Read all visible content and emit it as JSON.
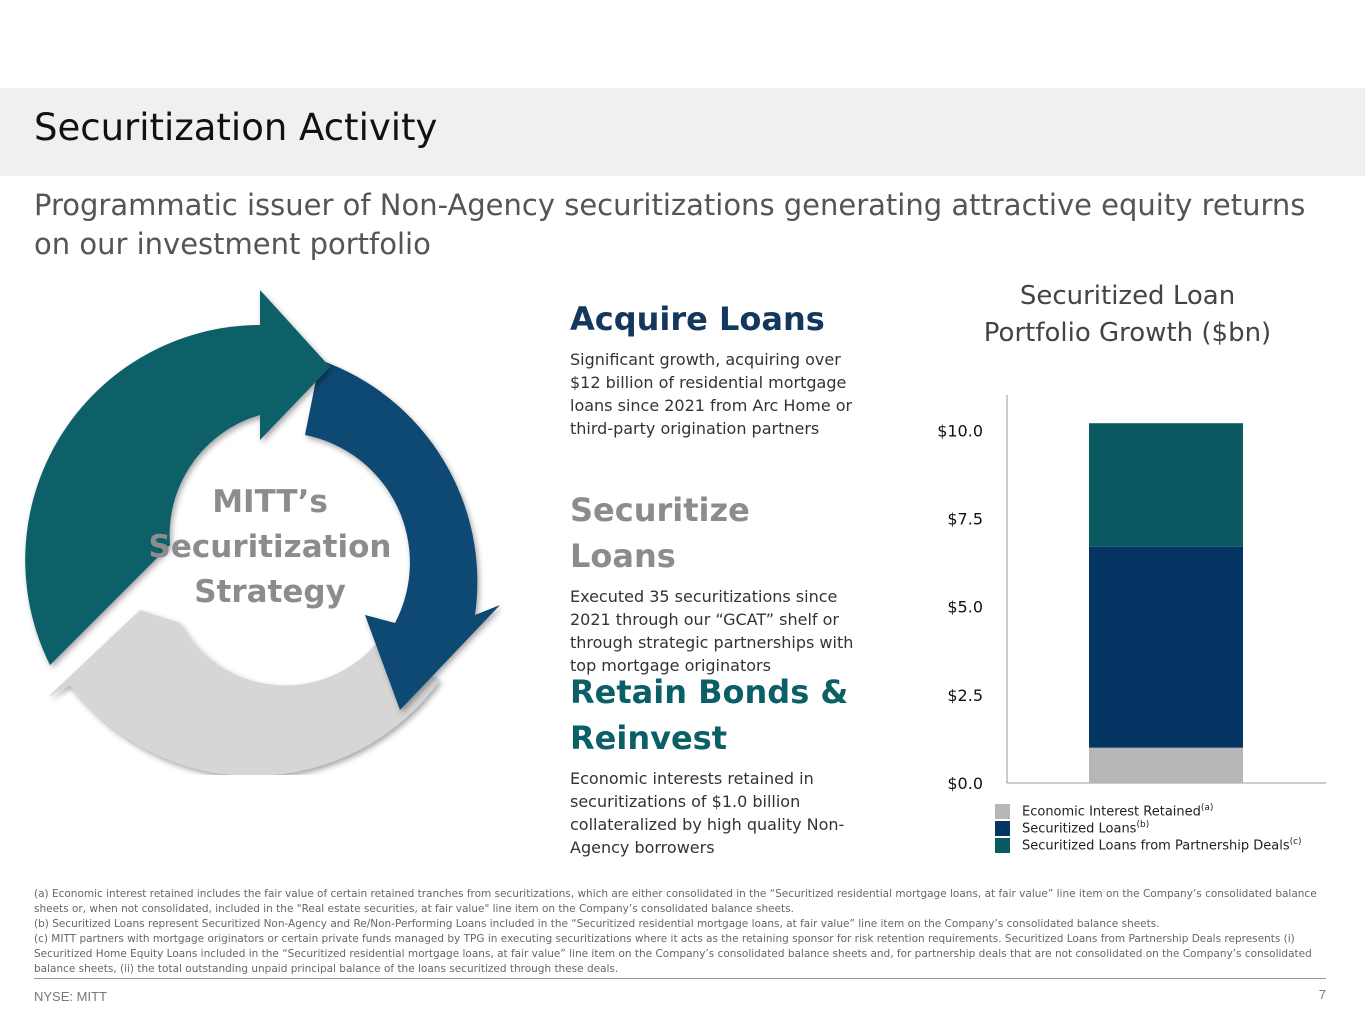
{
  "header": {
    "title": "Securitization Activity",
    "subtitle": "Programmatic issuer of Non-Agency securitizations generating attractive equity returns on our investment portfolio"
  },
  "cycle": {
    "label_lines": [
      "MITT’s",
      "Securitization",
      "Strategy"
    ],
    "colors": {
      "teal": "#0b6068",
      "blue": "#0e4873",
      "gray": "#d6d6d6"
    }
  },
  "steps": [
    {
      "heading": "Acquire Loans",
      "color": "#14375e",
      "body": "Significant growth, acquiring over $12 billion of residential mortgage loans since 2021 from Arc Home or third-party origination partners"
    },
    {
      "heading": "Securitize Loans",
      "color": "#8c8c8c",
      "body": "Executed 35 securitizations since 2021 through our “GCAT” shelf or through strategic partnerships with top mortgage originators"
    },
    {
      "heading": "Retain Bonds & Reinvest",
      "color": "#0b5f66",
      "body": "Economic interests retained in securitizations of $1.0 billion collateralized by high quality Non-Agency borrowers"
    }
  ],
  "chart_data": {
    "type": "bar",
    "title": "Securitized Loan Portfolio Growth ($bn)",
    "stacked": true,
    "ylim": [
      0,
      11
    ],
    "yticks": [
      0,
      2.5,
      5,
      7.5,
      10
    ],
    "ytick_labels": [
      "$0.0",
      "$2.5",
      "$5.0",
      "$7.5",
      "$10.0"
    ],
    "categories": [
      ""
    ],
    "series": [
      {
        "name": "Economic Interest Retained",
        "footnote": "(a)",
        "values": [
          1.0
        ],
        "color": "#b7b7b7"
      },
      {
        "name": "Securitized Loans",
        "footnote": "(b)",
        "values": [
          5.7
        ],
        "color": "#053563"
      },
      {
        "name": "Securitized Loans from Partnership Deals",
        "footnote": "(c)",
        "values": [
          3.5
        ],
        "color": "#0b5a61"
      }
    ],
    "legend": "bottom",
    "grid": false
  },
  "footnotes": [
    "(a) Economic interest retained includes the fair value of certain retained tranches from securitizations, which are either consolidated in the “Securitized residential mortgage loans, at fair value” line item on the Company’s consolidated balance sheets or, when not consolidated, included in the \"Real estate securities, at fair value\" line item on the Company’s consolidated balance sheets.",
    "(b) Securitized Loans represent Securitized Non-Agency and Re/Non-Performing Loans included in the “Securitized residential mortgage loans, at fair value” line item on the Company’s consolidated balance sheets.",
    "(c) MITT partners with mortgage originators or certain private funds managed by TPG in executing securitizations where it acts as the retaining sponsor for risk retention requirements. Securitized Loans from Partnership Deals represents (i) Securitized Home Equity Loans included in the “Securitized residential mortgage loans, at fair value” line item on the Company’s consolidated balance sheets and, for partnership deals that are not consolidated on the Company’s consolidated balance sheets, (ii) the total outstanding unpaid principal balance of the loans securitized through these deals."
  ],
  "footer": {
    "ticker": "NYSE: MITT",
    "page": "7"
  }
}
